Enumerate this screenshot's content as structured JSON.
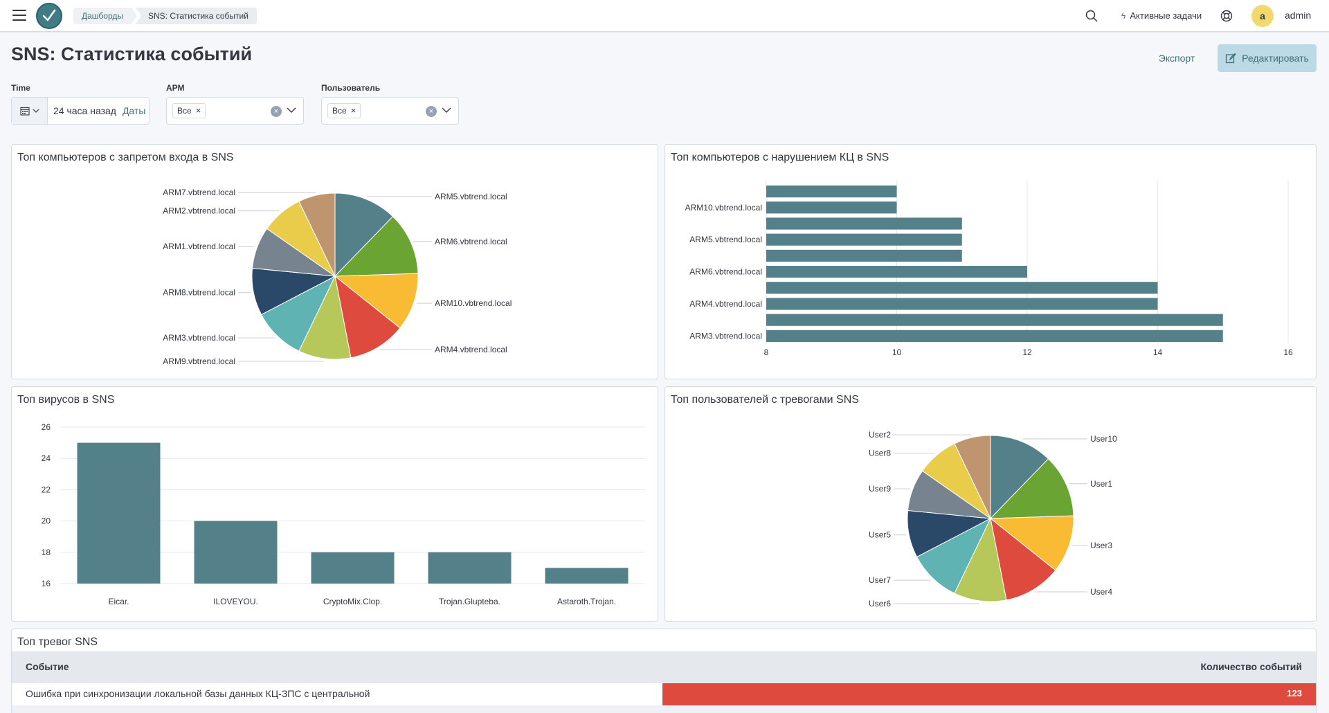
{
  "topbar": {
    "breadcrumbs": [
      "Дашборды",
      "SNS: Статистика событий"
    ],
    "tasks_label": "Активные задачи",
    "avatar_letter": "a",
    "username": "admin"
  },
  "page": {
    "title": "SNS: Статистика событий",
    "export_label": "Экспорт",
    "edit_label": "Редактировать"
  },
  "filters": {
    "time": {
      "label": "Time",
      "value": "24 часа назад",
      "dates_label": "Даты"
    },
    "arm": {
      "label": "АРМ",
      "selected": "Все"
    },
    "user": {
      "label": "Пользователь",
      "selected": "Все"
    }
  },
  "colors": {
    "palette": [
      "#54808a",
      "#6aa534",
      "#f9bb33",
      "#df4a3e",
      "#b6c85a",
      "#5fb3b2",
      "#2a4868",
      "#77838f",
      "#e9cd4a",
      "#bf9570"
    ],
    "bar": "#54808a",
    "alert": "#df4a3e",
    "accent": "#3f6f78"
  },
  "panels": {
    "pie_computers_title": "Топ компьютеров с запретом входа в SNS",
    "bar_kc_title": "Топ компьютеров с нарушением КЦ в SNS",
    "virus_title": "Топ вирусов в SNS",
    "pie_users_title": "Топ пользователей с тревогами SNS",
    "alerts_title": "Топ тревог SNS"
  },
  "chart_data": [
    {
      "type": "pie",
      "title": "Топ компьютеров с запретом входа в SNS",
      "labels": [
        "ARM5.vbtrend.local",
        "ARM6.vbtrend.local",
        "ARM10.vbtrend.local",
        "ARM4.vbtrend.local",
        "ARM9.vbtrend.local",
        "ARM3.vbtrend.local",
        "ARM8.vbtrend.local",
        "ARM1.vbtrend.local",
        "ARM2.vbtrend.local",
        "ARM7.vbtrend.local"
      ],
      "values": [
        12,
        12,
        11,
        11,
        10,
        10,
        9,
        8,
        8,
        7
      ]
    },
    {
      "type": "bar",
      "orientation": "horizontal",
      "title": "Топ компьютеров с нарушением КЦ в SNS",
      "tick_labels": [
        "ARM10.vbtrend.local",
        "ARM5.vbtrend.local",
        "ARM6.vbtrend.local",
        "ARM4.vbtrend.local",
        "ARM3.vbtrend.local"
      ],
      "values": [
        10,
        10,
        11,
        11,
        11,
        12,
        14,
        14,
        15,
        15
      ],
      "xlim": [
        8,
        16
      ],
      "xticks": [
        8,
        10,
        12,
        14,
        16
      ]
    },
    {
      "type": "bar",
      "title": "Топ вирусов в SNS",
      "categories": [
        "Eicar.",
        "ILOVEYOU.",
        "CryptoMix.Clop.",
        "Trojan.Glupteba.",
        "Astaroth.Trojan."
      ],
      "values": [
        25,
        20,
        18,
        18,
        17
      ],
      "ylim": [
        16,
        26
      ],
      "yticks": [
        16,
        18,
        20,
        22,
        24,
        26
      ]
    },
    {
      "type": "pie",
      "title": "Топ пользователей с тревогами SNS",
      "labels": [
        "User10",
        "User1",
        "User3",
        "User4",
        "User6",
        "User7",
        "User5",
        "User9",
        "User8",
        "User2"
      ],
      "values": [
        12,
        12,
        11,
        11,
        10,
        10,
        9,
        8,
        8,
        7
      ]
    },
    {
      "type": "table",
      "title": "Топ тревог SNS",
      "columns": [
        "Событие",
        "Количество событий"
      ],
      "rows": [
        [
          "Ошибка при синхронизации локальной базы данных КЦ-ЗПС с центральной",
          123
        ]
      ]
    }
  ]
}
